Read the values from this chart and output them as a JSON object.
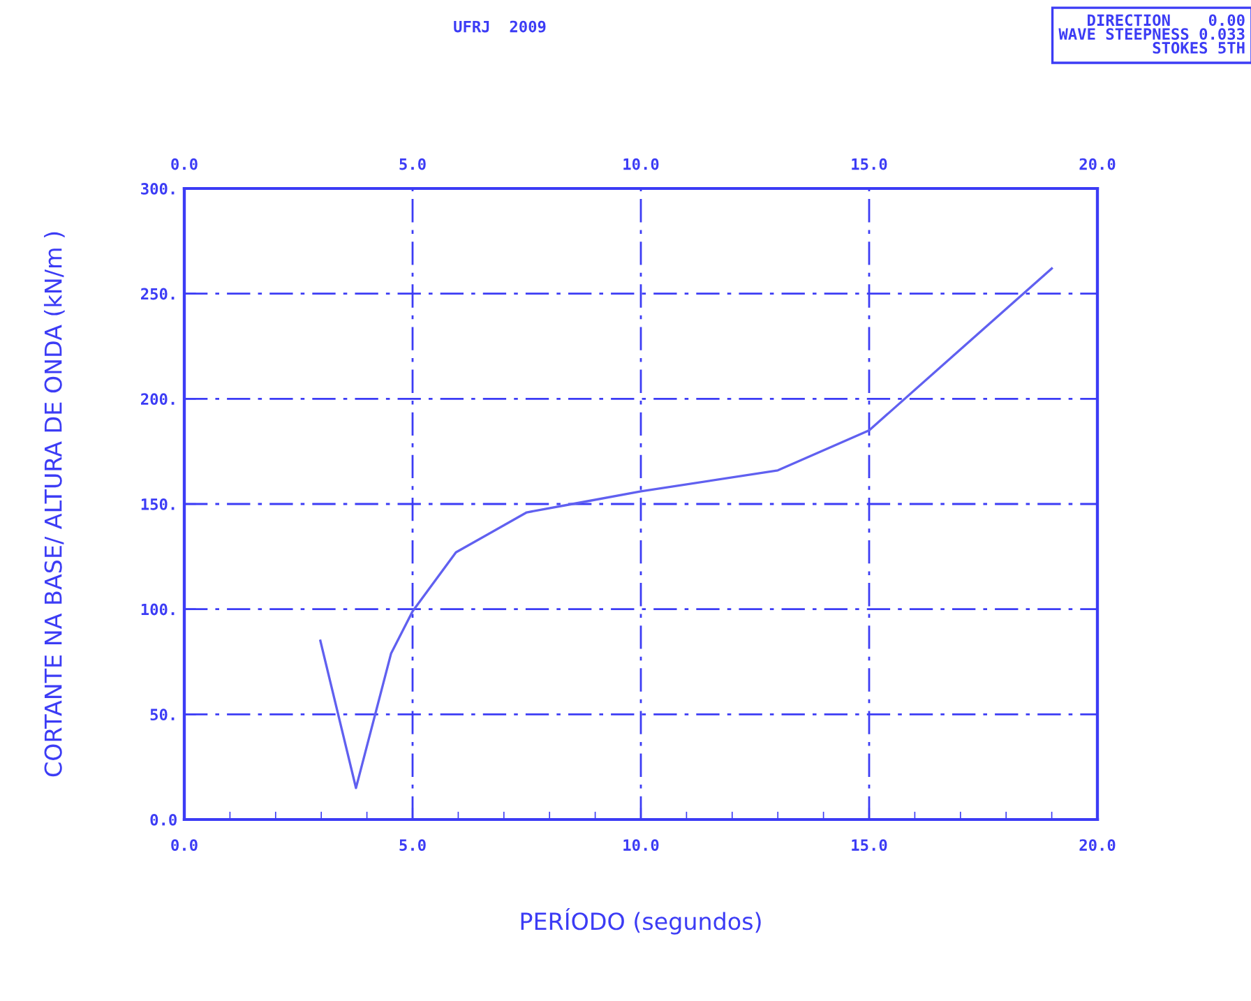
{
  "chart_data": {
    "type": "line",
    "title": "UFRJ  2009",
    "xlabel": "PERÍODO (segundos)",
    "ylabel": "CORTANTE NA BASE/ ALTURA DE ONDA (kN/m )",
    "annotations": [
      "DIRECTION    0.00\nWAVE STEEPNESS 0.033\nSTOKES 5TH"
    ],
    "x": [
      2.98,
      3.76,
      4.53,
      5.0,
      5.95,
      7.5,
      8.5,
      10.0,
      13.0,
      15.0,
      19.0
    ],
    "series": [
      {
        "color": "#6060f0",
        "values": [
          85,
          15,
          79,
          99,
          127,
          146,
          150,
          156,
          166,
          185,
          262
        ]
      }
    ],
    "xlim": [
      0,
      20
    ],
    "ylim": [
      0,
      300
    ],
    "xticks": [
      {
        "value": 0,
        "label": "0.0"
      },
      {
        "value": 5,
        "label": "5.0"
      },
      {
        "value": 10,
        "label": "10.0"
      },
      {
        "value": 15,
        "label": "15.0"
      },
      {
        "value": 20,
        "label": "20.0"
      }
    ],
    "x2lim": [
      0,
      20
    ],
    "x2ticks": [
      {
        "value": 0,
        "label": "0.0"
      },
      {
        "value": 5,
        "label": "5.0"
      },
      {
        "value": 10,
        "label": "10.0"
      },
      {
        "value": 15,
        "label": "15.0"
      },
      {
        "value": 20,
        "label": "20.0"
      }
    ],
    "yticks": [
      {
        "value": 0,
        "label": "0.0"
      },
      {
        "value": 50,
        "label": "50."
      },
      {
        "value": 100,
        "label": "100."
      },
      {
        "value": 150,
        "label": "150."
      },
      {
        "value": 200,
        "label": "200."
      },
      {
        "value": 250,
        "label": "250."
      },
      {
        "value": 300,
        "label": "300."
      }
    ],
    "grid": true,
    "marker": "none",
    "line_style": "solid"
  }
}
